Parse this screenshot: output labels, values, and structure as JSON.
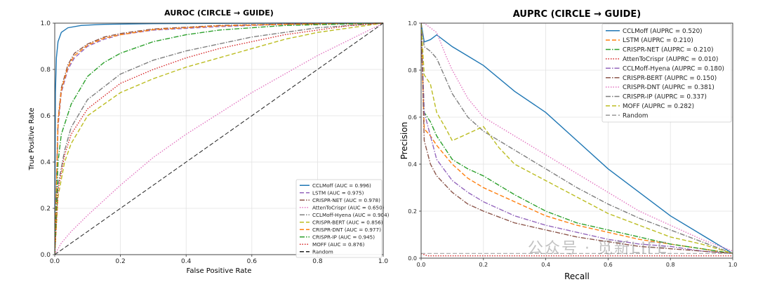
{
  "chart_data": [
    {
      "type": "line",
      "title": "AUROC (CIRCLE → GUIDE)",
      "xlabel": "False Positive Rate",
      "ylabel": "True Positive Rate",
      "xlim": [
        0,
        1
      ],
      "ylim": [
        0,
        1
      ],
      "grid": true,
      "legend_position": "bottom-right",
      "x_ticks": [
        "0.0",
        "0.2",
        "0.4",
        "0.6",
        "0.8",
        "1.0"
      ],
      "y_ticks": [
        "0.0",
        "0.2",
        "0.4",
        "0.6",
        "0.8",
        "1.0"
      ],
      "series": [
        {
          "name": "CCLMoff (AUC = 0.996)",
          "color": "#1f77b4",
          "dash": "solid",
          "x": [
            0,
            0.002,
            0.005,
            0.01,
            0.02,
            0.04,
            0.08,
            0.15,
            0.3,
            0.5,
            0.7,
            1.0
          ],
          "y": [
            0,
            0.7,
            0.85,
            0.92,
            0.96,
            0.98,
            0.99,
            0.995,
            0.998,
            0.999,
            1.0,
            1.0
          ]
        },
        {
          "name": "LSTM (AUC = 0.975)",
          "color": "#9467bd",
          "dash": "dashed",
          "x": [
            0,
            0.01,
            0.02,
            0.04,
            0.06,
            0.1,
            0.15,
            0.2,
            0.3,
            0.5,
            0.7,
            1.0
          ],
          "y": [
            0,
            0.55,
            0.7,
            0.8,
            0.85,
            0.9,
            0.93,
            0.95,
            0.97,
            0.985,
            0.995,
            1.0
          ]
        },
        {
          "name": "CRISPR-NET (AUC = 0.978)",
          "color": "#8c564b",
          "dash": "dashdot",
          "x": [
            0,
            0.01,
            0.02,
            0.04,
            0.06,
            0.1,
            0.15,
            0.2,
            0.3,
            0.5,
            0.7,
            1.0
          ],
          "y": [
            0,
            0.58,
            0.72,
            0.82,
            0.87,
            0.91,
            0.94,
            0.955,
            0.975,
            0.99,
            0.996,
            1.0
          ]
        },
        {
          "name": "AttenToCrispr (AUC = 0.650)",
          "color": "#e377c2",
          "dash": "dotted",
          "x": [
            0,
            0.02,
            0.05,
            0.1,
            0.2,
            0.3,
            0.4,
            0.5,
            0.6,
            0.7,
            0.8,
            0.9,
            1.0
          ],
          "y": [
            0,
            0.05,
            0.1,
            0.17,
            0.3,
            0.42,
            0.52,
            0.61,
            0.7,
            0.78,
            0.86,
            0.93,
            1.0
          ]
        },
        {
          "name": "CCLMoff-Hyena (AUC = 0.904)",
          "color": "#7f7f7f",
          "dash": "dashdot",
          "x": [
            0,
            0.01,
            0.03,
            0.05,
            0.1,
            0.2,
            0.3,
            0.4,
            0.5,
            0.6,
            0.7,
            0.8,
            1.0
          ],
          "y": [
            0,
            0.3,
            0.45,
            0.55,
            0.67,
            0.78,
            0.84,
            0.88,
            0.91,
            0.94,
            0.96,
            0.98,
            1.0
          ]
        },
        {
          "name": "CRISPR-BERT (AUC = 0.856)",
          "color": "#bcbd22",
          "dash": "dashed",
          "x": [
            0,
            0.01,
            0.03,
            0.05,
            0.1,
            0.2,
            0.3,
            0.4,
            0.5,
            0.6,
            0.7,
            0.8,
            0.9,
            1.0
          ],
          "y": [
            0,
            0.25,
            0.4,
            0.48,
            0.6,
            0.7,
            0.76,
            0.81,
            0.85,
            0.89,
            0.93,
            0.96,
            0.98,
            1.0
          ]
        },
        {
          "name": "CRISPR-DNT (AUC = 0.977)",
          "color": "#ff7f0e",
          "dash": "dashed",
          "x": [
            0,
            0.01,
            0.02,
            0.04,
            0.06,
            0.1,
            0.15,
            0.2,
            0.3,
            0.5,
            0.7,
            1.0
          ],
          "y": [
            0,
            0.57,
            0.71,
            0.81,
            0.86,
            0.905,
            0.935,
            0.95,
            0.972,
            0.988,
            0.995,
            1.0
          ]
        },
        {
          "name": "CRISPR-IP (AUC = 0.945)",
          "color": "#2ca02c",
          "dash": "dashdot",
          "x": [
            0,
            0.01,
            0.02,
            0.05,
            0.1,
            0.15,
            0.2,
            0.3,
            0.4,
            0.5,
            0.7,
            1.0
          ],
          "y": [
            0,
            0.4,
            0.52,
            0.65,
            0.77,
            0.83,
            0.87,
            0.92,
            0.95,
            0.97,
            0.99,
            1.0
          ]
        },
        {
          "name": "MOFF (AUC = 0.876)",
          "color": "#d62728",
          "dash": "dotted",
          "x": [
            0,
            0.01,
            0.03,
            0.05,
            0.1,
            0.2,
            0.3,
            0.4,
            0.5,
            0.6,
            0.7,
            0.8,
            0.9,
            1.0
          ],
          "y": [
            0,
            0.28,
            0.43,
            0.52,
            0.63,
            0.74,
            0.8,
            0.85,
            0.89,
            0.92,
            0.95,
            0.97,
            0.99,
            1.0
          ]
        },
        {
          "name": "Random",
          "color": "#222222",
          "dash": "dashed",
          "x": [
            0,
            1
          ],
          "y": [
            0,
            1
          ]
        }
      ]
    },
    {
      "type": "line",
      "title": "AUPRC (CIRCLE → GUIDE)",
      "xlabel": "Recall",
      "ylabel": "Precision",
      "xlim": [
        0,
        1
      ],
      "ylim": [
        0,
        1
      ],
      "grid": true,
      "legend_position": "top-right",
      "x_ticks": [
        "0.0",
        "0.2",
        "0.4",
        "0.6",
        "0.8",
        "1.0"
      ],
      "y_ticks": [
        "0.0",
        "0.2",
        "0.4",
        "0.6",
        "0.8",
        "1.0"
      ],
      "series": [
        {
          "name": "CCLMoff (AUPRC = 0.520)",
          "color": "#1f77b4",
          "dash": "solid",
          "x": [
            0,
            0.01,
            0.03,
            0.05,
            0.08,
            0.1,
            0.15,
            0.2,
            0.3,
            0.4,
            0.5,
            0.6,
            0.7,
            0.8,
            0.9,
            1.0
          ],
          "y": [
            1.0,
            0.92,
            0.93,
            0.95,
            0.92,
            0.9,
            0.86,
            0.82,
            0.71,
            0.62,
            0.5,
            0.38,
            0.28,
            0.18,
            0.1,
            0.02
          ]
        },
        {
          "name": "LSTM (AUPRC = 0.210)",
          "color": "#ff7f0e",
          "dash": "dashed",
          "x": [
            0,
            0.01,
            0.03,
            0.05,
            0.1,
            0.15,
            0.2,
            0.3,
            0.4,
            0.5,
            0.6,
            0.7,
            0.8,
            0.9,
            1.0
          ],
          "y": [
            1.0,
            0.55,
            0.52,
            0.48,
            0.4,
            0.34,
            0.3,
            0.24,
            0.18,
            0.14,
            0.11,
            0.08,
            0.06,
            0.04,
            0.02
          ]
        },
        {
          "name": "CRISPR-NET (AUPRC = 0.210)",
          "color": "#2ca02c",
          "dash": "dashdot",
          "x": [
            0,
            0.01,
            0.03,
            0.05,
            0.1,
            0.15,
            0.2,
            0.3,
            0.4,
            0.5,
            0.6,
            0.7,
            0.8,
            0.9,
            1.0
          ],
          "y": [
            1.0,
            0.62,
            0.58,
            0.52,
            0.42,
            0.38,
            0.35,
            0.27,
            0.2,
            0.15,
            0.12,
            0.09,
            0.06,
            0.04,
            0.02
          ]
        },
        {
          "name": "AttenToCrispr (AUPRC = 0.010)",
          "color": "#d62728",
          "dash": "dotted",
          "x": [
            0,
            0.02,
            0.1,
            0.3,
            0.5,
            0.7,
            1.0
          ],
          "y": [
            0.02,
            0.01,
            0.01,
            0.01,
            0.01,
            0.01,
            0.01
          ]
        },
        {
          "name": "CCLMoff-Hyena (AUPRC = 0.180)",
          "color": "#9467bd",
          "dash": "dashdot",
          "x": [
            0,
            0.01,
            0.03,
            0.05,
            0.1,
            0.15,
            0.2,
            0.3,
            0.4,
            0.5,
            0.6,
            0.7,
            0.8,
            0.9,
            1.0
          ],
          "y": [
            1.0,
            0.62,
            0.52,
            0.42,
            0.33,
            0.28,
            0.24,
            0.18,
            0.14,
            0.11,
            0.08,
            0.06,
            0.05,
            0.03,
            0.02
          ]
        },
        {
          "name": "CRISPR-BERT (AUPRC = 0.150)",
          "color": "#8c564b",
          "dash": "dashdot",
          "x": [
            0,
            0.01,
            0.03,
            0.05,
            0.1,
            0.15,
            0.2,
            0.3,
            0.4,
            0.5,
            0.6,
            0.7,
            0.8,
            0.9,
            1.0
          ],
          "y": [
            1.0,
            0.5,
            0.4,
            0.35,
            0.28,
            0.23,
            0.2,
            0.15,
            0.12,
            0.09,
            0.07,
            0.05,
            0.04,
            0.03,
            0.02
          ]
        },
        {
          "name": "CRISPR-DNT (AUPRC = 0.381)",
          "color": "#e377c2",
          "dash": "dotted",
          "x": [
            0,
            0.01,
            0.03,
            0.05,
            0.08,
            0.1,
            0.15,
            0.2,
            0.3,
            0.4,
            0.5,
            0.6,
            0.7,
            0.8,
            0.9,
            1.0
          ],
          "y": [
            1.0,
            1.0,
            0.98,
            0.96,
            0.86,
            0.8,
            0.68,
            0.6,
            0.52,
            0.44,
            0.36,
            0.28,
            0.2,
            0.14,
            0.08,
            0.03
          ]
        },
        {
          "name": "CRISPR-IP (AUPRC = 0.337)",
          "color": "#7f7f7f",
          "dash": "dashdot",
          "x": [
            0,
            0.01,
            0.03,
            0.05,
            0.08,
            0.1,
            0.15,
            0.2,
            0.3,
            0.4,
            0.5,
            0.6,
            0.7,
            0.8,
            0.9,
            1.0
          ],
          "y": [
            1.0,
            0.9,
            0.88,
            0.85,
            0.76,
            0.7,
            0.6,
            0.54,
            0.46,
            0.38,
            0.3,
            0.23,
            0.17,
            0.12,
            0.07,
            0.02
          ]
        },
        {
          "name": "MOFF (AUPRC = 0.282)",
          "color": "#bcbd22",
          "dash": "dashed",
          "x": [
            0,
            0.01,
            0.03,
            0.05,
            0.08,
            0.1,
            0.15,
            0.2,
            0.25,
            0.3,
            0.4,
            0.5,
            0.6,
            0.7,
            0.8,
            0.9,
            1.0
          ],
          "y": [
            1.0,
            0.78,
            0.74,
            0.62,
            0.55,
            0.5,
            0.53,
            0.56,
            0.47,
            0.4,
            0.33,
            0.26,
            0.19,
            0.14,
            0.09,
            0.06,
            0.02
          ]
        },
        {
          "name": "Random",
          "color": "#999999",
          "dash": "dashed",
          "x": [
            0,
            1
          ],
          "y": [
            0.02,
            0.02
          ]
        }
      ]
    }
  ],
  "watermark": "公众号 · 觅新LIFE"
}
